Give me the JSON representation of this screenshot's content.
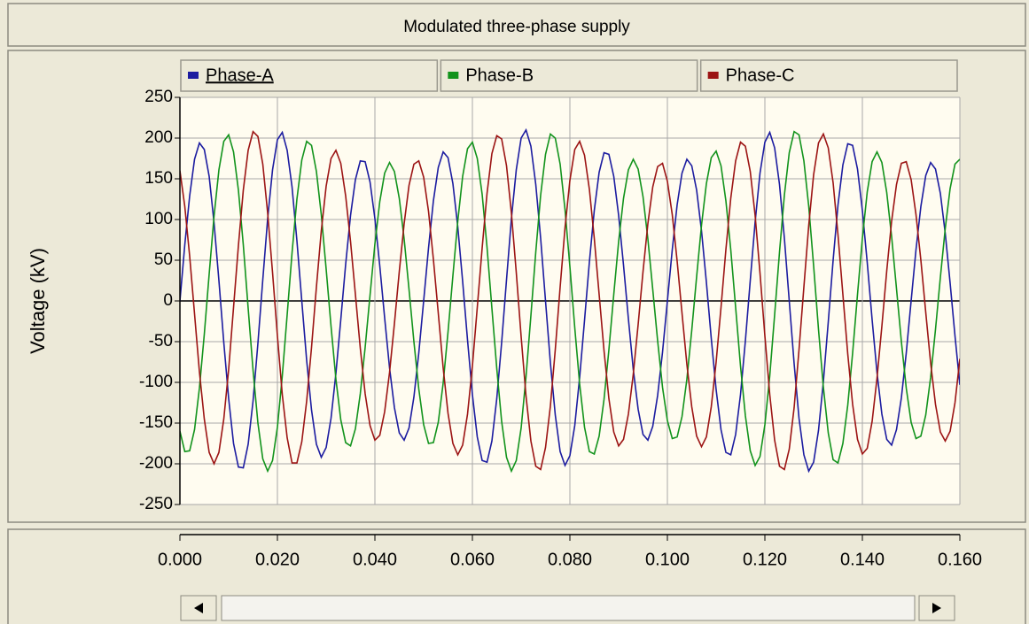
{
  "chart_data": {
    "type": "line",
    "title": "Modulated three-phase supply",
    "ylabel": "Voltage (kV)",
    "legend": "top",
    "grid": true,
    "xlim": [
      0,
      0.16
    ],
    "xticks": [
      {
        "value": 0,
        "label": "0.000"
      },
      {
        "value": 0.02,
        "label": "0.020"
      },
      {
        "value": 0.04,
        "label": "0.040"
      },
      {
        "value": 0.06,
        "label": "0.060"
      },
      {
        "value": 0.08,
        "label": "0.080"
      },
      {
        "value": 0.1,
        "label": "0.100"
      },
      {
        "value": 0.12,
        "label": "0.120"
      },
      {
        "value": 0.14,
        "label": "0.140"
      },
      {
        "value": 0.16,
        "label": "0.160"
      }
    ],
    "ylim": [
      -250,
      250
    ],
    "yticks": [
      -250,
      -200,
      -150,
      -100,
      -50,
      0,
      50,
      100,
      150,
      200,
      250
    ],
    "x": [
      0,
      0.001,
      0.002,
      0.003,
      0.004,
      0.005,
      0.006,
      0.007,
      0.008,
      0.009,
      0.01,
      0.011,
      0.012,
      0.013,
      0.014,
      0.015,
      0.016,
      0.017,
      0.018,
      0.019,
      0.02,
      0.021,
      0.022,
      0.023,
      0.024,
      0.025,
      0.026,
      0.027,
      0.028,
      0.029,
      0.03,
      0.031,
      0.032,
      0.033,
      0.034,
      0.035,
      0.036,
      0.037,
      0.038,
      0.039,
      0.04,
      0.041,
      0.042,
      0.043,
      0.044,
      0.045,
      0.046,
      0.047,
      0.048,
      0.049,
      0.05,
      0.051,
      0.052,
      0.053,
      0.054,
      0.055,
      0.056,
      0.057,
      0.058,
      0.059,
      0.06,
      0.061,
      0.062,
      0.063,
      0.064,
      0.065,
      0.066,
      0.067,
      0.068,
      0.069,
      0.07,
      0.071,
      0.072,
      0.073,
      0.074,
      0.075,
      0.076,
      0.077,
      0.078,
      0.079,
      0.08,
      0.081,
      0.082,
      0.083,
      0.084,
      0.085,
      0.086,
      0.087,
      0.088,
      0.089,
      0.09,
      0.091,
      0.092,
      0.093,
      0.094,
      0.095,
      0.096,
      0.097,
      0.098,
      0.099,
      0.1,
      0.101,
      0.102,
      0.103,
      0.104,
      0.105,
      0.106,
      0.107,
      0.108,
      0.109,
      0.11,
      0.111,
      0.112,
      0.113,
      0.114,
      0.115,
      0.116,
      0.117,
      0.118,
      0.119,
      0.12,
      0.121,
      0.122,
      0.123,
      0.124,
      0.125,
      0.126,
      0.127,
      0.128,
      0.129,
      0.13,
      0.131,
      0.132,
      0.133,
      0.134,
      0.135,
      0.136,
      0.137,
      0.138,
      0.139,
      0.14,
      0.141,
      0.142,
      0.143,
      0.144,
      0.145,
      0.146,
      0.147,
      0.148,
      0.149,
      0.15,
      0.151,
      0.152,
      0.153,
      0.154,
      0.155,
      0.156,
      0.157,
      0.158,
      0.159,
      0.16
    ],
    "series": [
      {
        "name": "Phase-A",
        "color": "#1c1ca0",
        "values": [
          0,
          69,
          129,
          174,
          194,
          186,
          153,
          96,
          25,
          -51,
          -120,
          -175,
          -204,
          -205,
          -176,
          -123,
          -52,
          26,
          101,
          161,
          198,
          207,
          185,
          140,
          74,
          0,
          -73,
          -134,
          -176,
          -192,
          -180,
          -144,
          -89,
          -23,
          45,
          105,
          149,
          172,
          171,
          146,
          101,
          43,
          -21,
          -82,
          -131,
          -162,
          -171,
          -156,
          -118,
          -64,
          0,
          65,
          123,
          164,
          183,
          176,
          144,
          91,
          24,
          -48,
          -115,
          -167,
          -196,
          -198,
          -172,
          -120,
          -51,
          26,
          101,
          161,
          200,
          210,
          190,
          143,
          77,
          0,
          -76,
          -140,
          -185,
          -202,
          -190,
          -153,
          -94,
          -24,
          48,
          111,
          158,
          182,
          180,
          153,
          105,
          44,
          -22,
          -84,
          -133,
          -164,
          -171,
          -154,
          -116,
          -63,
          0,
          63,
          118,
          157,
          174,
          166,
          136,
          86,
          23,
          -46,
          -109,
          -158,
          -186,
          -189,
          -164,
          -115,
          -49,
          25,
          97,
          157,
          195,
          207,
          188,
          143,
          77,
          0,
          -77,
          -144,
          -189,
          -209,
          -198,
          -159,
          -99,
          -26,
          50,
          118,
          167,
          193,
          191,
          162,
          111,
          47,
          -23,
          -88,
          -139,
          -170,
          -177,
          -158,
          -119,
          -64,
          0,
          63,
          116,
          154,
          170,
          162,
          132,
          83,
          22,
          -43,
          -103
        ]
      },
      {
        "name": "Phase-B",
        "color": "#12931c",
        "values": [
          -160,
          -185,
          -184,
          -158,
          -107,
          -41,
          33,
          104,
          161,
          196,
          204,
          183,
          136,
          69,
          -9,
          -85,
          -150,
          -194,
          -209,
          -196,
          -155,
          -92,
          -17,
          59,
          125,
          173,
          196,
          191,
          159,
          106,
          39,
          -31,
          -96,
          -146,
          -174,
          -178,
          -157,
          -114,
          -57,
          7,
          70,
          122,
          157,
          170,
          159,
          126,
          76,
          14,
          -50,
          -108,
          -152,
          -175,
          -174,
          -149,
          -101,
          -38,
          31,
          98,
          153,
          187,
          195,
          175,
          131,
          66,
          -9,
          -83,
          -148,
          -192,
          -209,
          -196,
          -156,
          -93,
          -18,
          60,
          130,
          180,
          205,
          200,
          168,
          112,
          42,
          -33,
          -102,
          -155,
          -185,
          -188,
          -166,
          -121,
          -60,
          8,
          73,
          126,
          161,
          174,
          162,
          128,
          76,
          14,
          -49,
          -106,
          -147,
          -169,
          -167,
          -142,
          -96,
          -36,
          30,
          93,
          144,
          176,
          184,
          166,
          123,
          63,
          -8,
          -80,
          -141,
          -184,
          -202,
          -191,
          -152,
          -92,
          -17,
          60,
          130,
          182,
          208,
          204,
          172,
          116,
          43,
          -35,
          -106,
          -162,
          -195,
          -199,
          -175,
          -128,
          -64,
          8,
          77,
          134,
          171,
          183,
          170,
          133,
          79,
          15,
          -50,
          -107,
          -149,
          -169,
          -166,
          -140,
          -94,
          -35,
          29,
          89,
          138,
          168,
          174
        ]
      },
      {
        "name": "Phase-C",
        "color": "#9c1414",
        "values": [
          160,
          116,
          55,
          -16,
          -87,
          -145,
          -186,
          -200,
          -186,
          -145,
          -84,
          -8,
          68,
          136,
          185,
          208,
          202,
          168,
          108,
          35,
          -43,
          -115,
          -168,
          -199,
          -199,
          -173,
          -123,
          -57,
          17,
          86,
          141,
          175,
          185,
          169,
          129,
          73,
          8,
          -58,
          -114,
          -153,
          -171,
          -165,
          -136,
          -88,
          -28,
          36,
          95,
          142,
          168,
          172,
          152,
          110,
          51,
          -15,
          -82,
          -138,
          -175,
          -189,
          -177,
          -139,
          -80,
          -8,
          65,
          132,
          181,
          203,
          199,
          166,
          108,
          35,
          -44,
          -117,
          -172,
          -203,
          -207,
          -180,
          -129,
          -60,
          17,
          90,
          148,
          186,
          196,
          179,
          137,
          77,
          8,
          -61,
          -120,
          -161,
          -178,
          -170,
          -139,
          -90,
          -29,
          36,
          95,
          140,
          165,
          169,
          147,
          106,
          49,
          -15,
          -78,
          -130,
          -166,
          -179,
          -167,
          -130,
          -75,
          -8,
          63,
          126,
          172,
          195,
          190,
          159,
          105,
          34,
          -43,
          -115,
          -171,
          -203,
          -207,
          -182,
          -131,
          -60,
          17,
          93,
          155,
          194,
          205,
          188,
          145,
          81,
          8,
          -65,
          -127,
          -170,
          -188,
          -181,
          -148,
          -95,
          -31,
          37,
          98,
          143,
          169,
          171,
          149,
          106,
          50,
          -14,
          -76,
          -127,
          -161,
          -172,
          -160,
          -125,
          -71
        ]
      }
    ]
  }
}
